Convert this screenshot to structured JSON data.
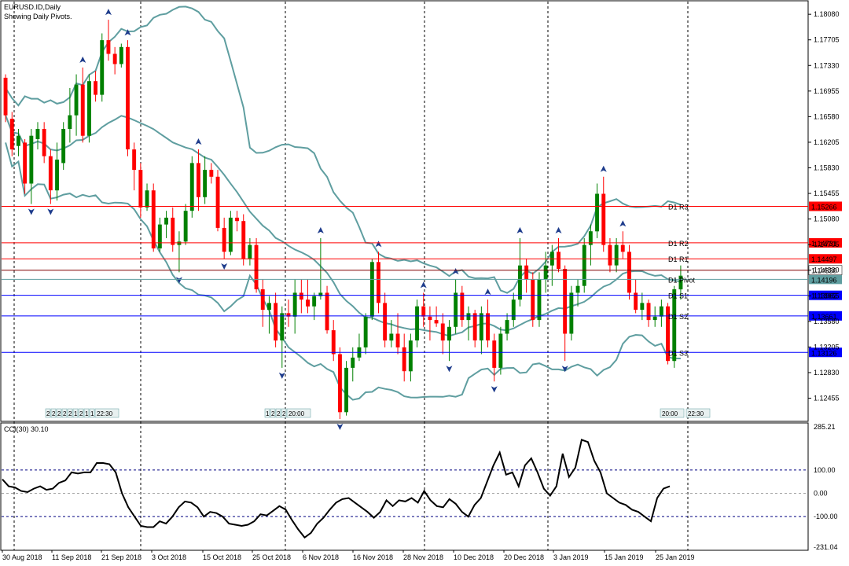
{
  "header": {
    "symbol_line": "EURUSD.ID,Daily",
    "indicator_line": "Showing Daily Pivots."
  },
  "main_axis": {
    "price_labels": [
      "1.18080",
      "1.17705",
      "1.17330",
      "1.16955",
      "1.16580",
      "1.16205",
      "1.15830",
      "1.15455",
      "1.15080",
      "1.14705",
      "1.14330",
      "1.13955",
      "1.13580",
      "1.13205",
      "1.12830",
      "1.12455"
    ]
  },
  "pivots": [
    {
      "label": "D1 R3",
      "badge": "1.15266",
      "color": "#ff0000",
      "badge_bg": "#ff0000",
      "value": 1.15266
    },
    {
      "label": "D1 R2",
      "badge": "1.14731",
      "color": "#ff0000",
      "badge_bg": "#ff0000",
      "value": 1.14731
    },
    {
      "label": "D1 R1",
      "badge": "1.14497",
      "color": "#ff0000",
      "badge_bg": "#ff0000",
      "value": 1.14497
    },
    {
      "label": "D1 Pivot",
      "badge": "1.14196",
      "color": "#5f9ea0",
      "badge_bg": "#5f9ea0",
      "value": 1.14196
    },
    {
      "label": "D1 S1",
      "badge": "1.13962",
      "color": "#0000ff",
      "badge_bg": "#0000ff",
      "value": 1.13962
    },
    {
      "label": "D1 S2",
      "badge": "1.13661",
      "color": "#0000ff",
      "badge_bg": "#0000ff",
      "value": 1.13661
    },
    {
      "label": "D1 S3",
      "badge": "1.13126",
      "color": "#0000ff",
      "badge_bg": "#0000ff",
      "value": 1.13126
    }
  ],
  "current_price": {
    "badge": "1.14330",
    "color": "#800000"
  },
  "session_tags": [
    {
      "digits": [
        "2",
        "2",
        "2",
        "2",
        "2",
        "1",
        "2",
        "1",
        "1"
      ],
      "time": "22:30"
    },
    {
      "digits": [
        "1",
        "2",
        "2",
        "2"
      ],
      "time": "20:00"
    },
    {
      "digits": [],
      "time": "20:00"
    },
    {
      "digits": [],
      "time": "22:30"
    }
  ],
  "cci": {
    "title": "CCI(30) 30.10",
    "levels": [
      "285.21",
      "100.00",
      "0.00",
      "-100.00",
      "-231.04"
    ],
    "values": [
      60,
      30,
      25,
      10,
      5,
      20,
      30,
      15,
      20,
      45,
      55,
      90,
      85,
      90,
      90,
      130,
      130,
      125,
      90,
      0,
      -60,
      -100,
      -140,
      -145,
      -145,
      -120,
      -130,
      -100,
      -60,
      -35,
      -40,
      -60,
      -100,
      -80,
      -85,
      -100,
      -130,
      -135,
      -140,
      -135,
      -120,
      -90,
      -95,
      -75,
      -55,
      -70,
      -115,
      -155,
      -190,
      -170,
      -130,
      -105,
      -70,
      -40,
      -25,
      -20,
      -40,
      -60,
      -80,
      -105,
      -80,
      -30,
      -55,
      -30,
      -35,
      -20,
      -40,
      10,
      -30,
      -55,
      -60,
      -25,
      -45,
      -80,
      -100,
      -50,
      -20,
      50,
      120,
      175,
      80,
      90,
      30,
      120,
      150,
      90,
      20,
      -10,
      30,
      170,
      70,
      110,
      230,
      220,
      140,
      90,
      0,
      -20,
      -40,
      -50,
      -70,
      -80,
      -100,
      -120,
      -20,
      20,
      30
    ]
  },
  "time_axis": {
    "labels": [
      "30 Aug 2018",
      "11 Sep 2018",
      "21 Sep 2018",
      "3 Oct 2018",
      "15 Oct 2018",
      "25 Oct 2018",
      "6 Nov 2018",
      "16 Nov 2018",
      "28 Nov 2018",
      "10 Dec 2018",
      "20 Dec 2018",
      "3 Jan 2019",
      "15 Jan 2019",
      "25 Jan 2019"
    ]
  },
  "colors": {
    "bull": "#008000",
    "bear": "#ff0000",
    "bollinger": "#5f9ea0",
    "fractal": "#1e3c8c",
    "grid": "#000000",
    "cci_line": "#000000",
    "cci_levels": "#000080"
  },
  "chart_data": {
    "type": "candlestick",
    "series": "EURUSD.ID,Daily",
    "ylim": [
      1.1215,
      1.1822
    ],
    "ohlc": [
      [
        1.1715,
        1.172,
        1.165,
        1.166
      ],
      [
        1.1655,
        1.1665,
        1.16,
        1.161
      ],
      [
        1.1615,
        1.164,
        1.16,
        1.163
      ],
      [
        1.162,
        1.1625,
        1.1545,
        1.156
      ],
      [
        1.156,
        1.164,
        1.153,
        1.163
      ],
      [
        1.1625,
        1.165,
        1.161,
        1.164
      ],
      [
        1.164,
        1.165,
        1.159,
        1.16
      ],
      [
        1.16,
        1.161,
        1.153,
        1.155
      ],
      [
        1.155,
        1.162,
        1.1535,
        1.1595
      ],
      [
        1.159,
        1.165,
        1.158,
        1.164
      ],
      [
        1.164,
        1.17,
        1.162,
        1.166
      ],
      [
        1.166,
        1.172,
        1.163,
        1.1705
      ],
      [
        1.1705,
        1.173,
        1.162,
        1.163
      ],
      [
        1.163,
        1.172,
        1.162,
        1.171
      ],
      [
        1.171,
        1.1725,
        1.168,
        1.169
      ],
      [
        1.169,
        1.178,
        1.168,
        1.177
      ],
      [
        1.177,
        1.18,
        1.174,
        1.175
      ],
      [
        1.175,
        1.176,
        1.172,
        1.1735
      ],
      [
        1.1735,
        1.1765,
        1.173,
        1.176
      ],
      [
        1.176,
        1.177,
        1.16,
        1.161
      ],
      [
        1.161,
        1.162,
        1.155,
        1.158
      ],
      [
        1.158,
        1.159,
        1.151,
        1.1525
      ],
      [
        1.1525,
        1.156,
        1.152,
        1.155
      ],
      [
        1.155,
        1.156,
        1.146,
        1.1465
      ],
      [
        1.1465,
        1.151,
        1.146,
        1.15
      ],
      [
        1.15,
        1.152,
        1.148,
        1.151
      ],
      [
        1.151,
        1.1525,
        1.146,
        1.147
      ],
      [
        1.147,
        1.149,
        1.143,
        1.1475
      ],
      [
        1.1475,
        1.153,
        1.147,
        1.152
      ],
      [
        1.152,
        1.16,
        1.151,
        1.159
      ],
      [
        1.159,
        1.161,
        1.152,
        1.154
      ],
      [
        1.154,
        1.16,
        1.153,
        1.158
      ],
      [
        1.158,
        1.159,
        1.156,
        1.157
      ],
      [
        1.157,
        1.158,
        1.149,
        1.1495
      ],
      [
        1.1495,
        1.151,
        1.145,
        1.146
      ],
      [
        1.146,
        1.152,
        1.1455,
        1.151
      ],
      [
        1.151,
        1.152,
        1.149,
        1.1505
      ],
      [
        1.1505,
        1.1515,
        1.144,
        1.145
      ],
      [
        1.145,
        1.148,
        1.144,
        1.147
      ],
      [
        1.147,
        1.148,
        1.14,
        1.1405
      ],
      [
        1.1405,
        1.142,
        1.135,
        1.1375
      ],
      [
        1.1375,
        1.1395,
        1.134,
        1.1385
      ],
      [
        1.1385,
        1.14,
        1.132,
        1.133
      ],
      [
        1.133,
        1.138,
        1.129,
        1.137
      ],
      [
        1.137,
        1.139,
        1.135,
        1.1365
      ],
      [
        1.1365,
        1.142,
        1.134,
        1.14
      ],
      [
        1.14,
        1.142,
        1.137,
        1.139
      ],
      [
        1.139,
        1.142,
        1.137,
        1.138
      ],
      [
        1.138,
        1.14,
        1.136,
        1.1395
      ],
      [
        1.1395,
        1.148,
        1.139,
        1.14
      ],
      [
        1.14,
        1.141,
        1.134,
        1.1345
      ],
      [
        1.1345,
        1.136,
        1.13,
        1.131
      ],
      [
        1.131,
        1.132,
        1.1215,
        1.1225
      ],
      [
        1.1225,
        1.13,
        1.122,
        1.129
      ],
      [
        1.129,
        1.132,
        1.127,
        1.1305
      ],
      [
        1.1305,
        1.134,
        1.13,
        1.132
      ],
      [
        1.132,
        1.137,
        1.131,
        1.1365
      ],
      [
        1.1365,
        1.145,
        1.136,
        1.1445
      ],
      [
        1.1445,
        1.146,
        1.137,
        1.1385
      ],
      [
        1.1385,
        1.14,
        1.132,
        1.133
      ],
      [
        1.133,
        1.136,
        1.132,
        1.134
      ],
      [
        1.134,
        1.137,
        1.131,
        1.132
      ],
      [
        1.132,
        1.134,
        1.127,
        1.1285
      ],
      [
        1.1285,
        1.134,
        1.127,
        1.133
      ],
      [
        1.133,
        1.139,
        1.132,
        1.138
      ],
      [
        1.138,
        1.14,
        1.135,
        1.1365
      ],
      [
        1.1365,
        1.138,
        1.133,
        1.136
      ],
      [
        1.136,
        1.138,
        1.135,
        1.1355
      ],
      [
        1.1355,
        1.137,
        1.131,
        1.133
      ],
      [
        1.133,
        1.136,
        1.13,
        1.135
      ],
      [
        1.135,
        1.142,
        1.134,
        1.14
      ],
      [
        1.14,
        1.141,
        1.135,
        1.136
      ],
      [
        1.136,
        1.138,
        1.133,
        1.137
      ],
      [
        1.137,
        1.1375,
        1.132,
        1.133
      ],
      [
        1.133,
        1.138,
        1.131,
        1.137
      ],
      [
        1.137,
        1.139,
        1.132,
        1.133
      ],
      [
        1.133,
        1.134,
        1.127,
        1.129
      ],
      [
        1.129,
        1.135,
        1.128,
        1.134
      ],
      [
        1.134,
        1.137,
        1.133,
        1.136
      ],
      [
        1.136,
        1.14,
        1.135,
        1.139
      ],
      [
        1.139,
        1.148,
        1.138,
        1.144
      ],
      [
        1.144,
        1.145,
        1.14,
        1.142
      ],
      [
        1.142,
        1.143,
        1.135,
        1.136
      ],
      [
        1.136,
        1.143,
        1.135,
        1.142
      ],
      [
        1.142,
        1.146,
        1.14,
        1.144
      ],
      [
        1.144,
        1.147,
        1.141,
        1.146
      ],
      [
        1.146,
        1.148,
        1.143,
        1.1435
      ],
      [
        1.1435,
        1.144,
        1.13,
        1.134
      ],
      [
        1.134,
        1.141,
        1.133,
        1.14
      ],
      [
        1.14,
        1.142,
        1.138,
        1.141
      ],
      [
        1.141,
        1.148,
        1.14,
        1.147
      ],
      [
        1.147,
        1.15,
        1.144,
        1.149
      ],
      [
        1.149,
        1.156,
        1.148,
        1.1545
      ],
      [
        1.1545,
        1.157,
        1.146,
        1.147
      ],
      [
        1.147,
        1.148,
        1.143,
        1.144
      ],
      [
        1.144,
        1.148,
        1.143,
        1.147
      ],
      [
        1.147,
        1.149,
        1.145,
        1.146
      ],
      [
        1.146,
        1.147,
        1.139,
        1.14
      ],
      [
        1.14,
        1.142,
        1.137,
        1.1375
      ],
      [
        1.1375,
        1.14,
        1.136,
        1.1385
      ],
      [
        1.1385,
        1.139,
        1.135,
        1.136
      ],
      [
        1.136,
        1.138,
        1.135,
        1.1365
      ],
      [
        1.1365,
        1.139,
        1.135,
        1.138
      ],
      [
        1.138,
        1.1385,
        1.1295,
        1.13
      ],
      [
        1.13,
        1.141,
        1.129,
        1.1405
      ],
      [
        1.1405,
        1.144,
        1.139,
        1.1425
      ]
    ]
  }
}
